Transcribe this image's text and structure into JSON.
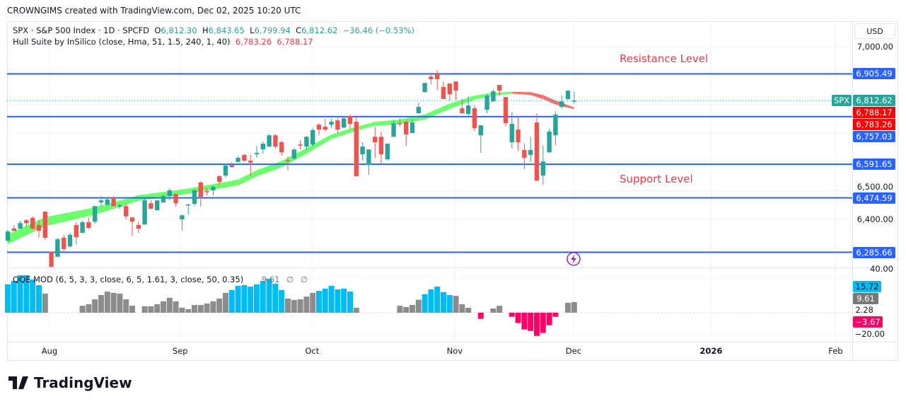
{
  "credit": "CROWNGIMS created with TradingView.com, Dec 02, 2025 10:20 UTC",
  "legend": {
    "symbol": "SPX · S&P 500 Index · 1D · SPCFD",
    "open_label": "O",
    "open": "6,812.30",
    "high_label": "H",
    "high": "6,843.65",
    "low_label": "L",
    "low": "6,799.94",
    "close_label": "C",
    "close": "6,812.62",
    "change": "−36.46 (−0.53%)",
    "indicator": "Hull Suite by InSilico (close, Hma, 51, 1.5, 240, 1, 40)",
    "hull_v1": "6,783.26",
    "hull_v2": "6,788.17"
  },
  "qqe_legend": {
    "label": "QQE MOD (6, 5, 3, 3, close, 6, 5, 1.61, 3, close, 50, 0.35)",
    "value": "9.61",
    "na1": "∅",
    "na2": "∅"
  },
  "currency": "USD",
  "annotations": {
    "resistance": "Resistance Level",
    "support": "Support Level"
  },
  "price_axis": {
    "ticks": [
      {
        "v": 7000,
        "label": "7,000.00"
      },
      {
        "v": 6500,
        "label": "6,500.00"
      },
      {
        "v": 6400,
        "label": "6,400.00"
      }
    ],
    "grid": [
      7000,
      6900,
      6800,
      6700,
      6600,
      6500,
      6400,
      6300
    ],
    "min": 6250,
    "max": 7090
  },
  "levels": [
    {
      "value": 6905.49,
      "label": "6,905.49"
    },
    {
      "value": 6757.03,
      "label": "6,757.03"
    },
    {
      "value": 6591.65,
      "label": "6,591.65"
    },
    {
      "value": 6474.59,
      "label": "6,474.59"
    },
    {
      "value": 6285.66,
      "label": "6,285.66"
    }
  ],
  "last_price": {
    "symbol": "SPX",
    "value": 6812.62,
    "label": "6,812.62"
  },
  "hull_tags": [
    {
      "value": 6788.17,
      "label": "6,788.17"
    },
    {
      "value": 6783.26,
      "label": "6,783.26"
    }
  ],
  "qqe_axis": {
    "top": "40.00",
    "bottom": "−20.00",
    "mid": "2.28",
    "tags": [
      {
        "label": "15.72",
        "color": "#00bcf2"
      },
      {
        "label": "9.61",
        "color": "#787878"
      },
      {
        "label": "−3.67",
        "color": "#ff0066"
      }
    ]
  },
  "time_axis": [
    {
      "label": "Aug",
      "i": 6.7
    },
    {
      "label": "Sep",
      "i": 27.7
    },
    {
      "label": "Oct",
      "i": 48.9
    },
    {
      "label": "Nov",
      "i": 71.8
    },
    {
      "label": "Dec",
      "i": 90.9
    },
    {
      "label": "2026",
      "i": 113
    },
    {
      "label": "Feb",
      "i": 133
    }
  ],
  "colors": {
    "up": "#26a69a",
    "down": "#ef5350",
    "level": "#2962ff",
    "hull_up": "#5cff5c",
    "hull_down": "#ff5c5c",
    "qqe_up": "#00bcf2",
    "qqe_neutral": "#8c8c8c",
    "qqe_down": "#ff0066"
  },
  "chart_data": {
    "type": "candlestick",
    "candles_ohlc": [
      [
        6326,
        6363,
        6321,
        6358
      ],
      [
        6368,
        6380,
        6360,
        6360
      ],
      [
        6368,
        6395,
        6368,
        6387
      ],
      [
        6397,
        6400,
        6375,
        6387
      ],
      [
        6405,
        6410,
        6363,
        6368
      ],
      [
        6380,
        6397,
        6336,
        6360
      ],
      [
        6427,
        6427,
        6328,
        6336
      ],
      [
        6287,
        6287,
        6233,
        6235
      ],
      [
        6270,
        6336,
        6270,
        6331
      ],
      [
        6336,
        6346,
        6289,
        6297
      ],
      [
        6306,
        6353,
        6301,
        6346
      ],
      [
        6380,
        6390,
        6311,
        6338
      ],
      [
        6353,
        6395,
        6353,
        6390
      ],
      [
        6390,
        6407,
        6365,
        6370
      ],
      [
        6392,
        6446,
        6385,
        6446
      ],
      [
        6459,
        6481,
        6444,
        6466
      ],
      [
        6451,
        6474,
        6444,
        6469
      ],
      [
        6476,
        6481,
        6444,
        6446
      ],
      [
        6444,
        6454,
        6437,
        6449
      ],
      [
        6446,
        6456,
        6400,
        6410
      ],
      [
        6407,
        6407,
        6343,
        6392
      ],
      [
        6380,
        6392,
        6353,
        6368
      ],
      [
        6382,
        6478,
        6382,
        6466
      ],
      [
        6456,
        6466,
        6437,
        6437
      ],
      [
        6432,
        6466,
        6432,
        6466
      ],
      [
        6459,
        6486,
        6456,
        6481
      ],
      [
        6481,
        6508,
        6466,
        6501
      ],
      [
        6488,
        6488,
        6444,
        6456
      ],
      [
        6400,
        6417,
        6360,
        6414
      ],
      [
        6451,
        6454,
        6417,
        6452
      ],
      [
        6454,
        6503,
        6446,
        6501
      ],
      [
        6528,
        6533,
        6444,
        6478
      ],
      [
        6498,
        6508,
        6483,
        6496
      ],
      [
        6501,
        6518,
        6483,
        6513
      ],
      [
        6550,
        6555,
        6518,
        6530
      ],
      [
        6552,
        6592,
        6545,
        6587
      ],
      [
        6589,
        6599,
        6579,
        6582
      ],
      [
        6599,
        6619,
        6599,
        6614
      ],
      [
        6624,
        6626,
        6601,
        6604
      ],
      [
        6604,
        6624,
        6550,
        6597
      ],
      [
        6626,
        6655,
        6614,
        6631
      ],
      [
        6643,
        6670,
        6628,
        6663
      ],
      [
        6653,
        6697,
        6653,
        6692
      ],
      [
        6692,
        6697,
        6646,
        6653
      ],
      [
        6668,
        6673,
        6621,
        6633
      ],
      [
        6606,
        6619,
        6569,
        6604
      ],
      [
        6611,
        6648,
        6606,
        6643
      ],
      [
        6660,
        6675,
        6643,
        6659
      ],
      [
        6653,
        6690,
        6641,
        6687
      ],
      [
        6660,
        6717,
        6655,
        6710
      ],
      [
        6729,
        6734,
        6692,
        6712
      ],
      [
        6722,
        6749,
        6705,
        6712
      ],
      [
        6729,
        6749,
        6717,
        6739
      ],
      [
        6744,
        6754,
        6700,
        6712
      ],
      [
        6719,
        6754,
        6717,
        6751
      ],
      [
        6759,
        6764,
        6714,
        6732
      ],
      [
        6739,
        6761,
        6550,
        6550
      ],
      [
        6626,
        6668,
        6604,
        6653
      ],
      [
        6589,
        6643,
        6555,
        6643
      ],
      [
        6687,
        6722,
        6614,
        6668
      ],
      [
        6687,
        6705,
        6594,
        6626
      ],
      [
        6609,
        6663,
        6604,
        6663
      ],
      [
        6687,
        6744,
        6687,
        6734
      ],
      [
        6734,
        6751,
        6722,
        6733
      ],
      [
        6739,
        6744,
        6655,
        6695
      ],
      [
        6700,
        6749,
        6700,
        6737
      ],
      [
        6769,
        6805,
        6769,
        6791
      ],
      [
        6842,
        6874,
        6842,
        6874
      ],
      [
        6896,
        6909,
        6869,
        6887
      ],
      [
        6909,
        6919,
        6850,
        6887
      ],
      [
        6860,
        6879,
        6818,
        6818
      ],
      [
        6872,
        6872,
        6813,
        6835
      ],
      [
        6879,
        6879,
        6815,
        6847
      ],
      [
        6786,
        6818,
        6766,
        6769
      ],
      [
        6766,
        6828,
        6761,
        6796
      ],
      [
        6786,
        6796,
        6707,
        6717
      ],
      [
        6692,
        6727,
        6631,
        6727
      ],
      [
        6781,
        6837,
        6769,
        6830
      ],
      [
        6810,
        6852,
        6808,
        6845
      ],
      [
        6867,
        6867,
        6828,
        6847
      ],
      [
        6825,
        6825,
        6724,
        6734
      ],
      [
        6668,
        6774,
        6646,
        6732
      ],
      [
        6712,
        6754,
        6638,
        6668
      ],
      [
        6641,
        6665,
        6574,
        6614
      ],
      [
        6624,
        6687,
        6601,
        6641
      ],
      [
        6737,
        6769,
        6533,
        6535
      ],
      [
        6552,
        6658,
        6520,
        6601
      ],
      [
        6633,
        6715,
        6631,
        6705
      ],
      [
        6692,
        6776,
        6658,
        6764
      ],
      [
        6791,
        6830,
        6786,
        6810
      ],
      [
        6818,
        6850,
        6815,
        6847
      ],
      [
        6812.3,
        6843.65,
        6799.94,
        6812.62
      ]
    ],
    "hull_band": [
      {
        "i": 0,
        "mid": 6331,
        "spread": 35
      },
      {
        "i": 6,
        "mid": 6392,
        "spread": 32
      },
      {
        "i": 14,
        "mid": 6429,
        "spread": 25
      },
      {
        "i": 21,
        "mid": 6474,
        "spread": 20
      },
      {
        "i": 29,
        "mid": 6498,
        "spread": 18
      },
      {
        "i": 37,
        "mid": 6528,
        "spread": 20
      },
      {
        "i": 40,
        "mid": 6560,
        "spread": 22
      },
      {
        "i": 44,
        "mid": 6592,
        "spread": 22
      },
      {
        "i": 48,
        "mid": 6638,
        "spread": 20
      },
      {
        "i": 52,
        "mid": 6687,
        "spread": 16
      },
      {
        "i": 56,
        "mid": 6715,
        "spread": 14
      },
      {
        "i": 59,
        "mid": 6732,
        "spread": 14
      },
      {
        "i": 63,
        "mid": 6739,
        "spread": 16
      },
      {
        "i": 67,
        "mid": 6756,
        "spread": 18
      },
      {
        "i": 71,
        "mid": 6793,
        "spread": 18
      },
      {
        "i": 75,
        "mid": 6823,
        "spread": 14
      },
      {
        "i": 78,
        "mid": 6835,
        "spread": 10
      },
      {
        "i": 81,
        "mid": 6840,
        "spread": 6
      },
      {
        "i": 84,
        "mid": 6837,
        "spread": 10
      },
      {
        "i": 86,
        "mid": 6825,
        "spread": 14
      },
      {
        "i": 88,
        "mid": 6806,
        "spread": 14
      },
      {
        "i": 91,
        "mid": 6786,
        "spread": 6
      }
    ],
    "hull_turn_index": 81,
    "qqe_histogram": [
      15.4,
      17.3,
      20.4,
      20.4,
      18.1,
      15.0,
      10.4,
      0,
      0,
      0,
      0,
      0,
      3.8,
      4.6,
      7.3,
      9.6,
      11.5,
      10.8,
      10.4,
      7.3,
      3.8,
      0,
      3.5,
      3.5,
      4.6,
      6.2,
      8.1,
      6.2,
      2.7,
      1.9,
      4.2,
      4.2,
      5.0,
      6.2,
      7.7,
      10.8,
      12.3,
      14.6,
      15.0,
      14.2,
      15.4,
      17.3,
      18.5,
      15.8,
      12.3,
      7.7,
      6.9,
      7.3,
      8.8,
      10.8,
      11.9,
      13.1,
      14.6,
      12.7,
      13.1,
      11.5,
      2.7,
      0,
      0,
      0,
      0,
      0,
      0,
      3.8,
      3.1,
      4.2,
      7.1,
      10.1,
      12.7,
      14.2,
      11.2,
      9.6,
      9.2,
      4.6,
      2.7,
      0,
      -3.3,
      0,
      2.3,
      3.8,
      0,
      -2.2,
      -5.6,
      -9.1,
      -9.9,
      -12.6,
      -11,
      -6.8,
      -2.2,
      0,
      5.4,
      5.8
    ],
    "qqe_strong_up_threshold_indices": [
      0,
      1,
      2,
      3,
      4,
      5,
      36,
      37,
      38,
      39,
      40,
      41,
      42,
      43,
      44,
      50,
      51,
      52,
      53,
      54,
      55,
      67,
      68,
      69,
      70,
      71
    ]
  }
}
